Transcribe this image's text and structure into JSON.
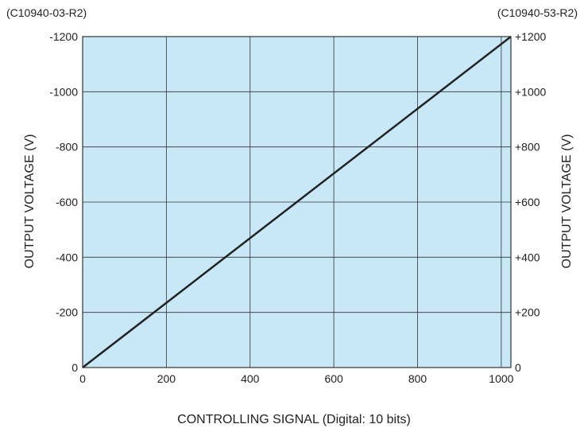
{
  "models": {
    "left": "(C10940-03-R2)",
    "right": "(C10940-53-R2)"
  },
  "colors": {
    "plot_background": "#c8e8f8",
    "grid": "#333333",
    "line": "#222222"
  },
  "chart_data": {
    "type": "line",
    "title": "",
    "xlabel": "CONTROLLING SIGNAL (Digital: 10 bits)",
    "ylabel_left": "OUTPUT VOLTAGE (V)",
    "ylabel_right": "OUTPUT VOLTAGE (V)",
    "xlim": [
      0,
      1023
    ],
    "ylim": [
      0,
      1200
    ],
    "x_ticks": [
      0,
      200,
      400,
      600,
      800,
      1000
    ],
    "x_tick_labels": [
      "0",
      "200",
      "400",
      "600",
      "800",
      "1000"
    ],
    "y_ticks": [
      0,
      200,
      400,
      600,
      800,
      1000,
      1200
    ],
    "y_tick_labels_left": [
      "0",
      "-200",
      "-400",
      "-600",
      "-800",
      "-1000",
      "-1200"
    ],
    "y_tick_labels_right": [
      "0",
      "+200",
      "+400",
      "+600",
      "+800",
      "+1000",
      "+1200"
    ],
    "grid": true,
    "series": [
      {
        "x": [
          0,
          1023
        ],
        "y": [
          0,
          1200
        ]
      }
    ]
  }
}
